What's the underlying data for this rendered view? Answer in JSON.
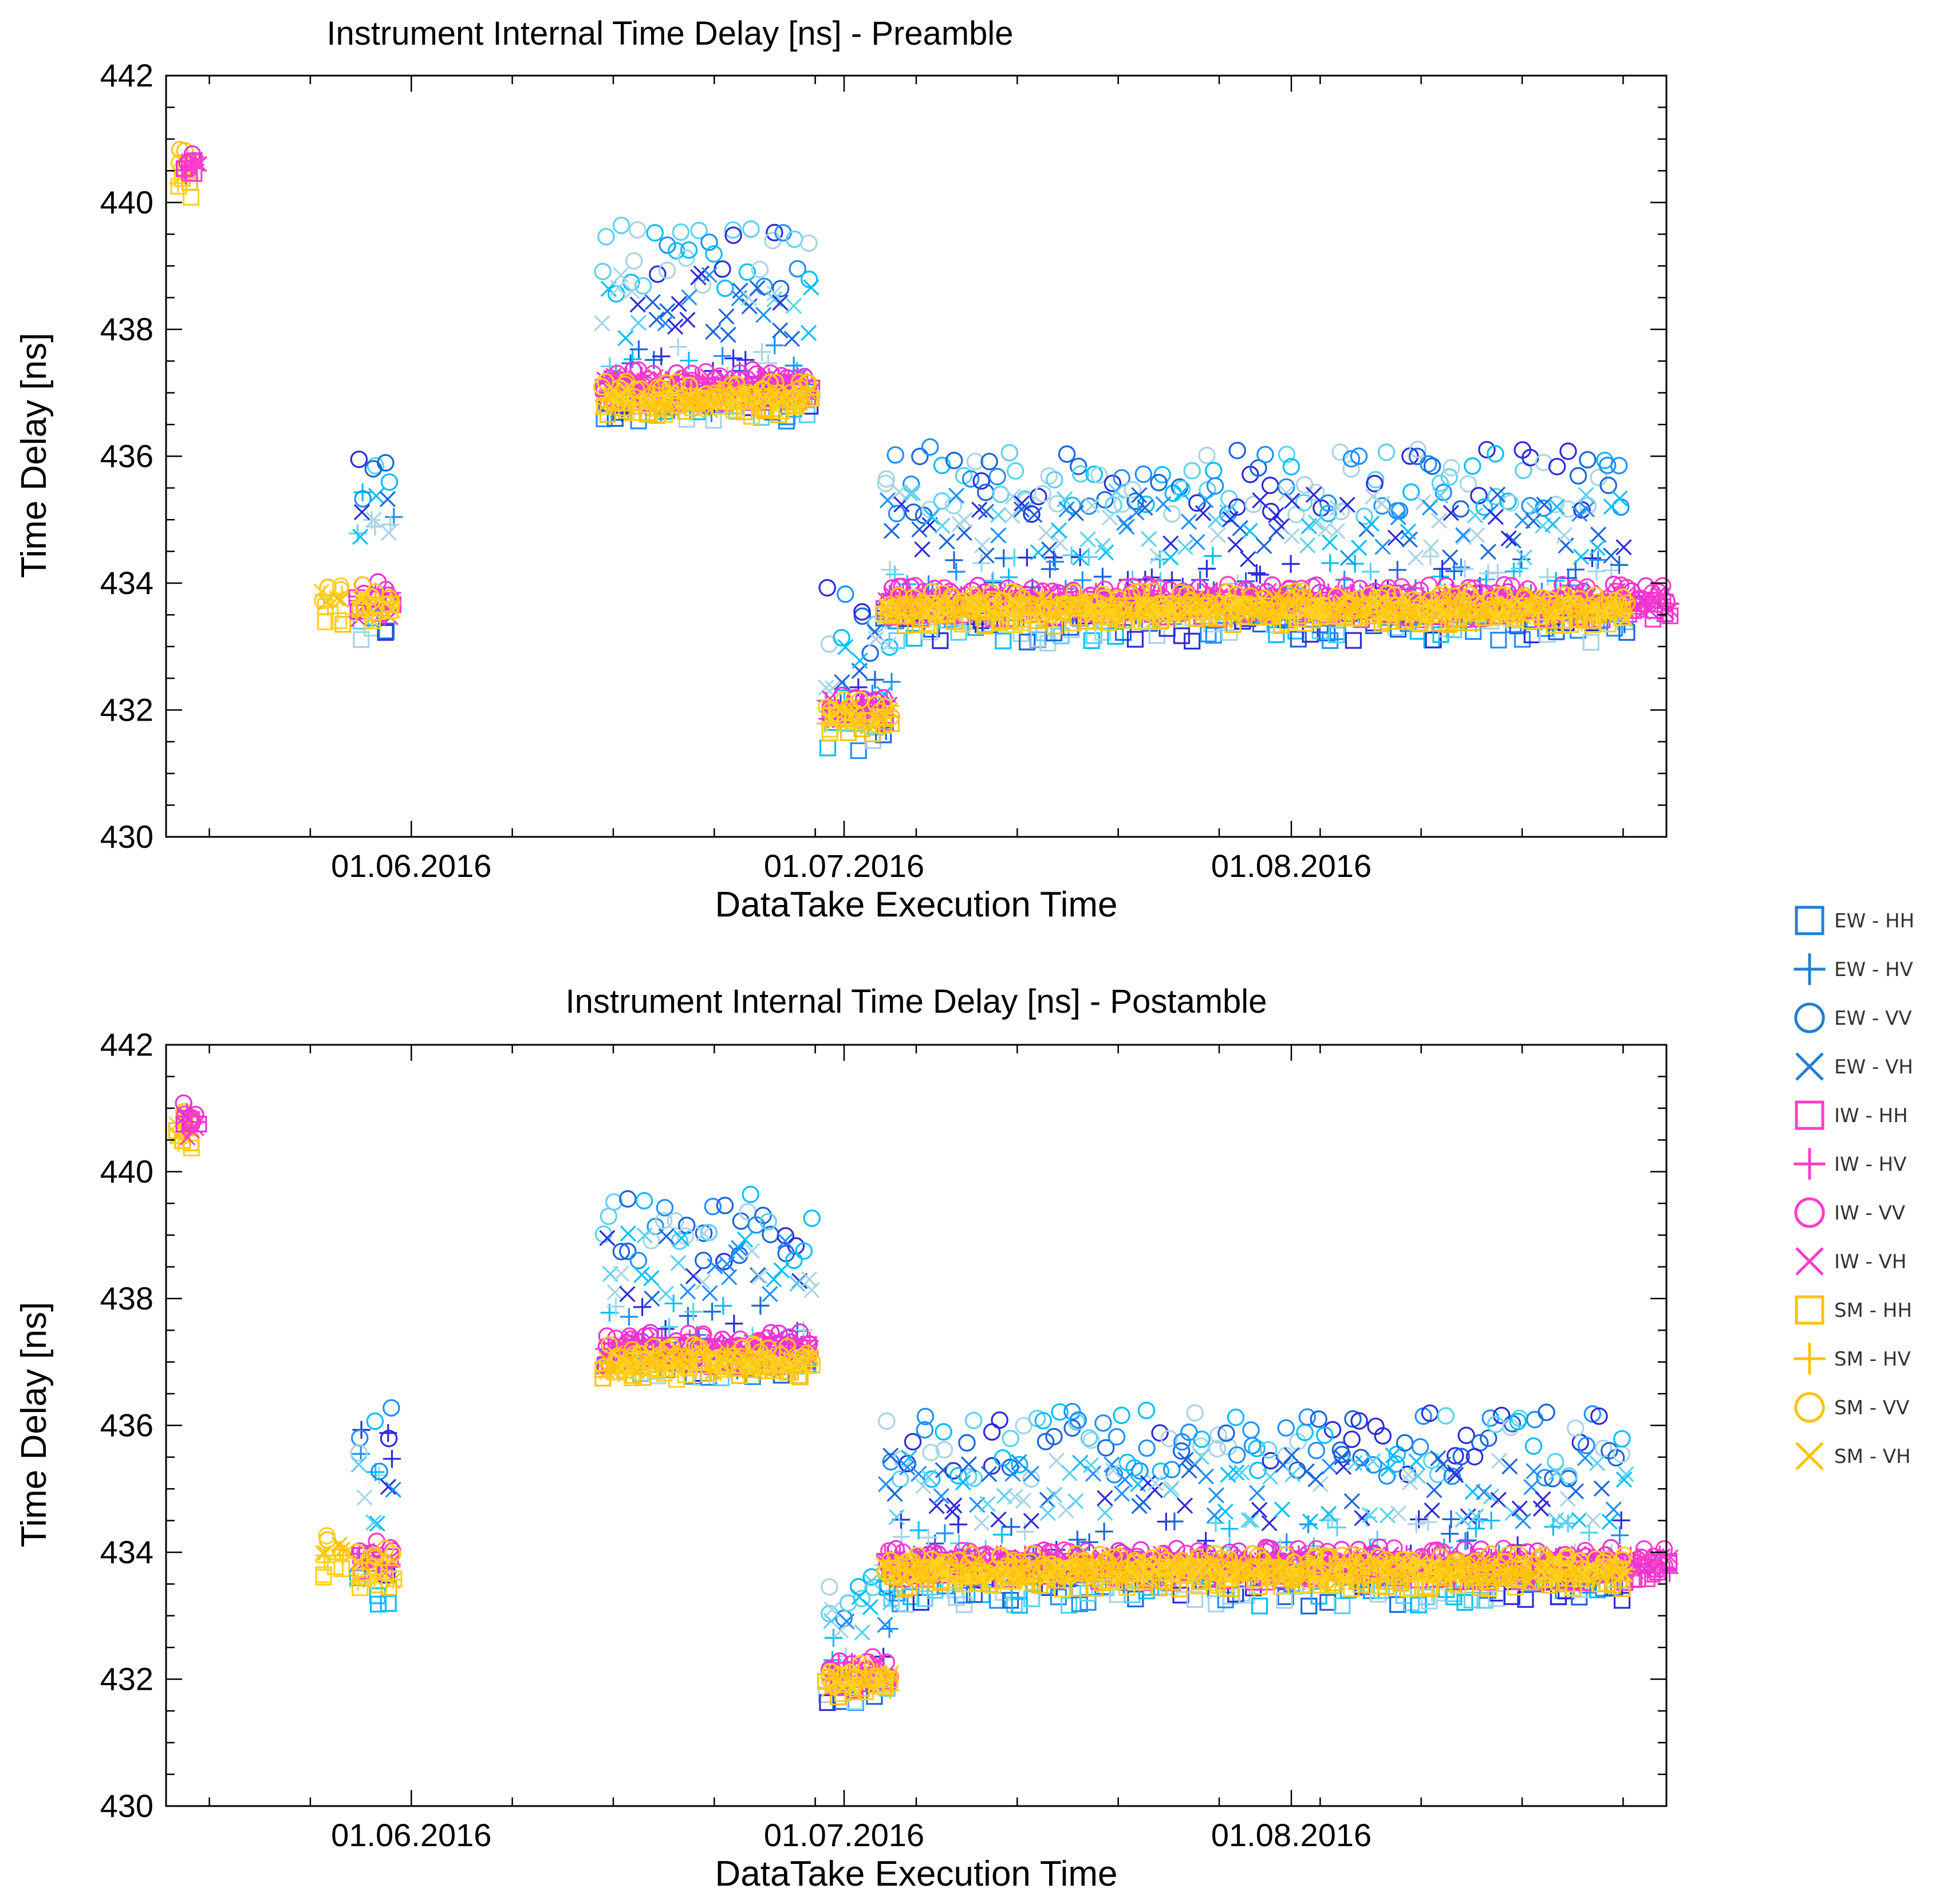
{
  "chart_data": [
    {
      "type": "scatter",
      "title": "Instrument Internal Time Delay [ns] - Preamble",
      "xlabel": "DataTake Execution Time",
      "ylabel": "Time Delay [ns]",
      "ylim": [
        430,
        442
      ],
      "xlim_days_from_2016_06_01": [
        -17,
        87
      ],
      "yticks": [
        "430",
        "432",
        "434",
        "436",
        "438",
        "440",
        "442"
      ],
      "xticks": [
        {
          "label": "01.06.2016",
          "day": 0
        },
        {
          "label": "01.07.2016",
          "day": 30
        },
        {
          "label": "01.08.2016",
          "day": 61
        }
      ],
      "clusters": [
        {
          "mode": "SM",
          "day_range": [
            -16,
            -15.5
          ],
          "values": {
            "HH": 440.2,
            "HV": 440.4,
            "VV": 440.7,
            "VH": 440.5
          }
        },
        {
          "mode": "IW",
          "day_range": [
            -15.5,
            -15
          ],
          "values": {
            "HH": 440.5,
            "HV": 440.6,
            "VV": 440.6,
            "VH": 440.5
          }
        },
        {
          "mode": "SM",
          "day_range": [
            -6,
            -5
          ],
          "values": {
            "HH": 433.5,
            "HV": 433.7,
            "VV": 433.9,
            "VH": 433.8
          }
        },
        {
          "mode": "EW",
          "day_range": [
            -3.5,
            -1.5
          ],
          "values": {
            "HH": 433.3,
            "HV": 435.2,
            "VV": 435.6,
            "VH": 434.9
          }
        },
        {
          "mode": "IW",
          "day_range": [
            -3.5,
            -1.5
          ],
          "values": {
            "HH": 433.6,
            "HV": 433.7,
            "VV": 433.9,
            "VH": 433.6
          }
        },
        {
          "mode": "SM",
          "day_range": [
            -3.5,
            -1.5
          ],
          "values": {
            "HH": 433.5,
            "HV": 433.6,
            "VV": 433.8,
            "VH": 433.6
          }
        },
        {
          "mode": "EW",
          "day_range": [
            13.5,
            27.5
          ],
          "values": {
            "HH": 436.8,
            "HV": 437.2,
            "VV": 439.1,
            "VH": 438.4
          }
        },
        {
          "mode": "IW",
          "day_range": [
            13.5,
            27.5
          ],
          "values": {
            "HH": 437.0,
            "HV": 437.1,
            "VV": 437.2,
            "VH": 437.1
          }
        },
        {
          "mode": "SM",
          "day_range": [
            13.5,
            27.5
          ],
          "values": {
            "HH": 436.8,
            "HV": 436.9,
            "VV": 437.0,
            "VH": 436.9
          }
        },
        {
          "mode": "EW",
          "day_range": [
            29,
            33
          ],
          "values": {
            "HH": 431.6,
            "HV": 432.1,
            "VV": 433.4,
            "VH": 432.8
          }
        },
        {
          "mode": "IW",
          "day_range": [
            29,
            33
          ],
          "values": {
            "HH": 431.9,
            "HV": 432.0,
            "VV": 432.1,
            "VH": 432.0
          }
        },
        {
          "mode": "SM",
          "day_range": [
            29,
            33
          ],
          "values": {
            "HH": 431.8,
            "HV": 431.9,
            "VV": 432.0,
            "VH": 431.9
          }
        },
        {
          "mode": "EW",
          "day_range": [
            33,
            84
          ],
          "values": {
            "HH": 433.3,
            "HV": 433.9,
            "VV": 435.6,
            "VH": 434.9
          }
        },
        {
          "mode": "IW",
          "day_range": [
            33,
            87
          ],
          "values": {
            "HH": 433.6,
            "HV": 433.7,
            "VV": 433.8,
            "VH": 433.7
          }
        },
        {
          "mode": "SM",
          "day_range": [
            33,
            84
          ],
          "values": {
            "HH": 433.5,
            "HV": 433.6,
            "VV": 433.7,
            "VH": 433.6
          }
        }
      ]
    },
    {
      "type": "scatter",
      "title": "Instrument Internal Time Delay [ns] - Postamble",
      "xlabel": "DataTake Execution Time",
      "ylabel": "Time Delay [ns]",
      "ylim": [
        430,
        442
      ],
      "xlim_days_from_2016_06_01": [
        -17,
        87
      ],
      "yticks": [
        "430",
        "432",
        "434",
        "436",
        "438",
        "440",
        "442"
      ],
      "xticks": [
        {
          "label": "01.06.2016",
          "day": 0
        },
        {
          "label": "01.07.2016",
          "day": 30
        },
        {
          "label": "01.08.2016",
          "day": 61
        }
      ],
      "clusters": [
        {
          "mode": "SM",
          "day_range": [
            -16,
            -15.5
          ],
          "values": {
            "HH": 440.5,
            "HV": 440.6,
            "VV": 440.8,
            "VH": 440.7
          }
        },
        {
          "mode": "IW",
          "day_range": [
            -15.5,
            -15
          ],
          "values": {
            "HH": 440.7,
            "HV": 440.8,
            "VV": 440.9,
            "VH": 440.7
          }
        },
        {
          "mode": "SM",
          "day_range": [
            -6,
            -5
          ],
          "values": {
            "HH": 433.7,
            "HV": 433.9,
            "VV": 434.1,
            "VH": 434.0
          }
        },
        {
          "mode": "EW",
          "day_range": [
            -3.5,
            -1.5
          ],
          "values": {
            "HH": 433.4,
            "HV": 435.4,
            "VV": 435.8,
            "VH": 435.0
          }
        },
        {
          "mode": "IW",
          "day_range": [
            -3.5,
            -1.5
          ],
          "values": {
            "HH": 433.8,
            "HV": 433.9,
            "VV": 434.0,
            "VH": 433.8
          }
        },
        {
          "mode": "SM",
          "day_range": [
            -3.5,
            -1.5
          ],
          "values": {
            "HH": 433.6,
            "HV": 433.7,
            "VV": 433.9,
            "VH": 433.7
          }
        },
        {
          "mode": "EW",
          "day_range": [
            13.5,
            27.5
          ],
          "values": {
            "HH": 437.0,
            "HV": 437.4,
            "VV": 439.1,
            "VH": 438.5
          }
        },
        {
          "mode": "IW",
          "day_range": [
            13.5,
            27.5
          ],
          "values": {
            "HH": 437.1,
            "HV": 437.2,
            "VV": 437.3,
            "VH": 437.2
          }
        },
        {
          "mode": "SM",
          "day_range": [
            13.5,
            27.5
          ],
          "values": {
            "HH": 436.9,
            "HV": 437.0,
            "VV": 437.1,
            "VH": 437.0
          }
        },
        {
          "mode": "EW",
          "day_range": [
            29,
            33
          ],
          "values": {
            "HH": 431.8,
            "HV": 432.3,
            "VV": 433.5,
            "VH": 433.0
          }
        },
        {
          "mode": "IW",
          "day_range": [
            29,
            33
          ],
          "values": {
            "HH": 432.0,
            "HV": 432.1,
            "VV": 432.2,
            "VH": 432.1
          }
        },
        {
          "mode": "SM",
          "day_range": [
            29,
            33
          ],
          "values": {
            "HH": 431.9,
            "HV": 432.0,
            "VV": 432.1,
            "VH": 432.0
          }
        },
        {
          "mode": "EW",
          "day_range": [
            33,
            84
          ],
          "values": {
            "HH": 433.4,
            "HV": 434.0,
            "VV": 435.7,
            "VH": 435.0
          }
        },
        {
          "mode": "IW",
          "day_range": [
            33,
            87
          ],
          "values": {
            "HH": 433.7,
            "HV": 433.8,
            "VV": 433.9,
            "VH": 433.8
          }
        },
        {
          "mode": "SM",
          "day_range": [
            33,
            84
          ],
          "values": {
            "HH": 433.6,
            "HV": 433.7,
            "VV": 433.8,
            "VH": 433.7
          }
        }
      ]
    }
  ],
  "legend": {
    "entries": [
      {
        "label": "EW - HH",
        "marker": "square",
        "color": "#1f7fd4"
      },
      {
        "label": "EW - HV",
        "marker": "plus",
        "color": "#1f7fd4"
      },
      {
        "label": "EW - VV",
        "marker": "circle",
        "color": "#1f7fd4"
      },
      {
        "label": "EW - VH",
        "marker": "cross",
        "color": "#1f7fd4"
      },
      {
        "label": "IW - HH",
        "marker": "square",
        "color": "#ff3dc8"
      },
      {
        "label": "IW - HV",
        "marker": "plus",
        "color": "#ff3dc8"
      },
      {
        "label": "IW - VV",
        "marker": "circle",
        "color": "#ff3dc8"
      },
      {
        "label": "IW - VH",
        "marker": "cross",
        "color": "#ff3dc8"
      },
      {
        "label": "SM - HH",
        "marker": "square",
        "color": "#ffc20e"
      },
      {
        "label": "SM - HV",
        "marker": "plus",
        "color": "#ffc20e"
      },
      {
        "label": "SM - VV",
        "marker": "circle",
        "color": "#ffc20e"
      },
      {
        "label": "SM - VH",
        "marker": "cross",
        "color": "#ffc20e"
      }
    ]
  },
  "colors": {
    "EW": [
      "#1a66d9",
      "#1e90ff",
      "#00bfff",
      "#2c2cd9",
      "#5ad2f0",
      "#a8d4e6"
    ],
    "IW": [
      "#ff3dc8",
      "#e632d6"
    ],
    "SM": [
      "#ffc20e",
      "#ffd21e"
    ]
  }
}
